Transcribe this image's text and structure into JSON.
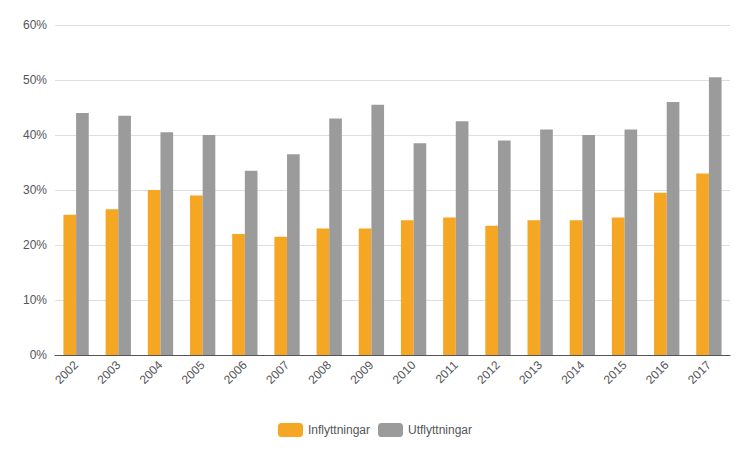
{
  "chart_data": {
    "type": "bar",
    "categories": [
      "2002",
      "2003",
      "2004",
      "2005",
      "2006",
      "2007",
      "2008",
      "2009",
      "2010",
      "2011",
      "2012",
      "2013",
      "2014",
      "2015",
      "2016",
      "2017"
    ],
    "series": [
      {
        "name": "Inflyttningar",
        "color": "#F5A623",
        "values": [
          25.5,
          26.5,
          30.0,
          29.0,
          22.0,
          21.5,
          23.0,
          23.0,
          24.5,
          25.0,
          23.5,
          24.5,
          24.5,
          25.0,
          29.5,
          33.0
        ]
      },
      {
        "name": "Utflyttningar",
        "color": "#9B9B9B",
        "values": [
          44.0,
          43.5,
          40.5,
          40.0,
          33.5,
          36.5,
          43.0,
          45.5,
          38.5,
          42.5,
          39.0,
          41.0,
          40.0,
          41.0,
          46.0,
          50.5
        ]
      }
    ],
    "ylim": [
      0,
      60
    ],
    "yticks": [
      {
        "value": 0,
        "label": "0%"
      },
      {
        "value": 10,
        "label": "10%"
      },
      {
        "value": 20,
        "label": "20%"
      },
      {
        "value": 30,
        "label": "30%"
      },
      {
        "value": 40,
        "label": "40%"
      },
      {
        "value": 50,
        "label": "50%"
      },
      {
        "value": 60,
        "label": "60%"
      }
    ],
    "grid": true,
    "legend": "bottom"
  }
}
